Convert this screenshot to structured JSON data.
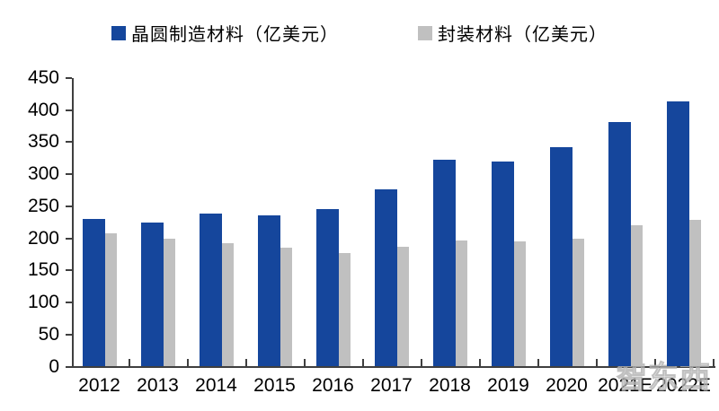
{
  "legend": {
    "series1_label": "晶圆制造材料（亿美元）",
    "series2_label": "封装材料（亿美元）"
  },
  "colors": {
    "wafer_blue": "#15469C",
    "packaging_gray": "#C0C0C0",
    "axis": "#3F3F3F",
    "text": "#000000"
  },
  "watermark_text": "智东西",
  "chart_data": {
    "type": "bar",
    "title": "",
    "xlabel": "",
    "ylabel": "",
    "categories": [
      "2012",
      "2013",
      "2014",
      "2015",
      "2016",
      "2017",
      "2018",
      "2019",
      "2020",
      "2021E",
      "2022E"
    ],
    "series": [
      {
        "name": "晶圆制造材料（亿美元）",
        "color": "#15469C",
        "values": [
          230,
          224,
          238,
          236,
          245,
          276,
          322,
          320,
          342,
          381,
          414
        ]
      },
      {
        "name": "封装材料（亿美元）",
        "color": "#C0C0C0",
        "values": [
          208,
          199,
          193,
          185,
          177,
          187,
          196,
          195,
          200,
          221,
          229
        ]
      }
    ],
    "ylim": [
      0,
      450
    ],
    "ytick_step": 50,
    "ytick_labels": [
      "0",
      "50",
      "100",
      "150",
      "200",
      "250",
      "300",
      "350",
      "400",
      "450"
    ],
    "grid": false,
    "legend_position": "top"
  }
}
